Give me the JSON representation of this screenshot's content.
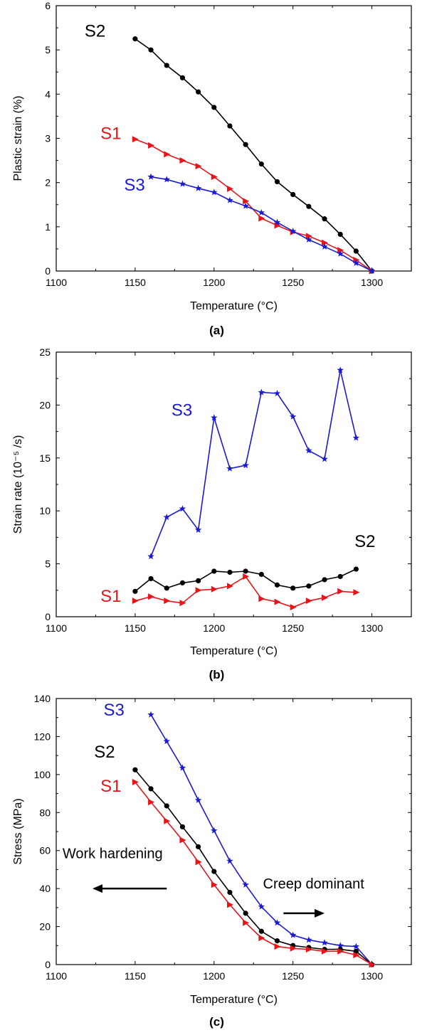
{
  "colors": {
    "S1": "#e8141a",
    "S2": "#000000",
    "S3": "#1a1ad4"
  },
  "chart_data": [
    {
      "type": "line",
      "panel_label": "(a)",
      "xlabel": "Temperature (°C)",
      "ylabel": "Plastic strain (%)",
      "xlim": [
        1100,
        1325
      ],
      "ylim": [
        0,
        6
      ],
      "xticks": [
        "1100",
        "1150",
        "1200",
        "1250",
        "1300"
      ],
      "yticks": [
        "0",
        "1",
        "2",
        "3",
        "4",
        "5",
        "6"
      ],
      "series": [
        {
          "name": "S2",
          "marker": "circle",
          "x": [
            1150,
            1160,
            1170,
            1180,
            1190,
            1200,
            1210,
            1220,
            1230,
            1240,
            1250,
            1260,
            1270,
            1280,
            1290,
            1300
          ],
          "y": [
            5.25,
            5.0,
            4.65,
            4.37,
            4.05,
            3.7,
            3.28,
            2.86,
            2.42,
            2.02,
            1.73,
            1.46,
            1.18,
            0.83,
            0.45,
            0.0
          ]
        },
        {
          "name": "S1",
          "marker": "triangle",
          "x": [
            1150,
            1160,
            1170,
            1180,
            1190,
            1200,
            1210,
            1220,
            1230,
            1240,
            1250,
            1260,
            1270,
            1280,
            1290,
            1300
          ],
          "y": [
            2.98,
            2.84,
            2.64,
            2.5,
            2.37,
            2.13,
            1.86,
            1.58,
            1.19,
            1.03,
            0.88,
            0.79,
            0.64,
            0.47,
            0.25,
            0.0
          ]
        },
        {
          "name": "S3",
          "marker": "star",
          "x": [
            1160,
            1170,
            1180,
            1190,
            1200,
            1210,
            1220,
            1230,
            1240,
            1250,
            1260,
            1270,
            1280,
            1290,
            1300
          ],
          "y": [
            2.13,
            2.07,
            1.97,
            1.87,
            1.78,
            1.6,
            1.47,
            1.32,
            1.1,
            0.9,
            0.71,
            0.55,
            0.39,
            0.18,
            0.0
          ]
        }
      ],
      "labels": [
        {
          "text": "S2",
          "series": "S2",
          "x": 1118,
          "y": 5.3
        },
        {
          "text": "S1",
          "series": "S1",
          "x": 1128,
          "y": 2.98
        },
        {
          "text": "S3",
          "series": "S3",
          "x": 1143,
          "y": 1.82
        }
      ]
    },
    {
      "type": "line",
      "panel_label": "(b)",
      "xlabel": "Temperature (°C)",
      "ylabel": "Strain rate (10⁻⁵ /s)",
      "xlim": [
        1100,
        1325
      ],
      "ylim": [
        0,
        25
      ],
      "xticks": [
        "1100",
        "1150",
        "1200",
        "1250",
        "1300"
      ],
      "yticks": [
        "0",
        "5",
        "10",
        "15",
        "20",
        "25"
      ],
      "series": [
        {
          "name": "S3",
          "marker": "star",
          "x": [
            1160,
            1170,
            1180,
            1190,
            1200,
            1210,
            1220,
            1230,
            1240,
            1250,
            1260,
            1270,
            1280,
            1290
          ],
          "y": [
            5.7,
            9.4,
            10.2,
            8.2,
            18.8,
            14.0,
            14.3,
            21.2,
            21.1,
            18.9,
            15.7,
            14.9,
            23.3,
            16.9
          ]
        },
        {
          "name": "S2",
          "marker": "circle",
          "x": [
            1150,
            1160,
            1170,
            1180,
            1190,
            1200,
            1210,
            1220,
            1230,
            1240,
            1250,
            1260,
            1270,
            1280,
            1290
          ],
          "y": [
            2.4,
            3.6,
            2.7,
            3.2,
            3.4,
            4.3,
            4.2,
            4.3,
            4.0,
            3.0,
            2.7,
            2.9,
            3.5,
            3.8,
            4.5
          ]
        },
        {
          "name": "S1",
          "marker": "triangle",
          "x": [
            1150,
            1160,
            1170,
            1180,
            1190,
            1200,
            1210,
            1220,
            1230,
            1240,
            1250,
            1260,
            1270,
            1280,
            1290
          ],
          "y": [
            1.5,
            1.9,
            1.5,
            1.3,
            2.5,
            2.6,
            2.9,
            3.8,
            1.7,
            1.4,
            0.9,
            1.5,
            1.8,
            2.4,
            2.3
          ]
        }
      ],
      "labels": [
        {
          "text": "S3",
          "series": "S3",
          "x": 1173,
          "y": 19.0
        },
        {
          "text": "S2",
          "series": "S2",
          "x": 1289,
          "y": 6.6
        },
        {
          "text": "S1",
          "series": "S1",
          "x": 1128,
          "y": 1.4
        }
      ]
    },
    {
      "type": "line",
      "panel_label": "(c)",
      "xlabel": "Temperature (°C)",
      "ylabel": "Stress (MPa)",
      "xlim": [
        1100,
        1325
      ],
      "ylim": [
        0,
        140
      ],
      "xticks": [
        "1100",
        "1150",
        "1200",
        "1250",
        "1300"
      ],
      "yticks": [
        "0",
        "20",
        "40",
        "60",
        "80",
        "100",
        "120",
        "140"
      ],
      "series": [
        {
          "name": "S3",
          "marker": "star",
          "x": [
            1160,
            1170,
            1180,
            1190,
            1200,
            1210,
            1220,
            1230,
            1240,
            1250,
            1260,
            1270,
            1280,
            1290,
            1300
          ],
          "y": [
            131.5,
            117.5,
            103.5,
            86.5,
            70.5,
            54.5,
            42.0,
            30.5,
            22.0,
            15.5,
            13.0,
            11.5,
            10.0,
            9.5,
            0.0
          ]
        },
        {
          "name": "S2",
          "marker": "circle",
          "x": [
            1150,
            1160,
            1170,
            1180,
            1190,
            1200,
            1210,
            1220,
            1230,
            1240,
            1250,
            1260,
            1270,
            1280,
            1290,
            1300
          ],
          "y": [
            102.5,
            92.5,
            83.5,
            72.5,
            62.0,
            49.0,
            38.0,
            27.0,
            17.5,
            12.5,
            10.0,
            9.0,
            8.0,
            8.0,
            7.0,
            0.0
          ]
        },
        {
          "name": "S1",
          "marker": "triangle",
          "x": [
            1150,
            1160,
            1170,
            1180,
            1190,
            1200,
            1210,
            1220,
            1230,
            1240,
            1250,
            1260,
            1270,
            1280,
            1290,
            1300
          ],
          "y": [
            96.0,
            85.5,
            75.5,
            65.5,
            54.0,
            42.0,
            31.5,
            22.0,
            14.0,
            9.5,
            8.5,
            8.0,
            7.0,
            7.0,
            5.0,
            0.0
          ]
        }
      ],
      "labels": [
        {
          "text": "S3",
          "series": "S3",
          "x": 1130,
          "y": 131
        },
        {
          "text": "S2",
          "series": "S2",
          "x": 1124,
          "y": 109
        },
        {
          "text": "S1",
          "series": "S1",
          "x": 1128,
          "y": 91
        }
      ],
      "annotations": [
        {
          "text": "Work hardening",
          "x": 1104,
          "y": 56,
          "arrow": {
            "from": 1170,
            "to": 1123,
            "y": 40
          }
        },
        {
          "text": "Creep dominant",
          "x": 1231,
          "y": 40,
          "arrow": {
            "from": 1244,
            "to": 1270,
            "y": 27
          }
        }
      ]
    }
  ]
}
